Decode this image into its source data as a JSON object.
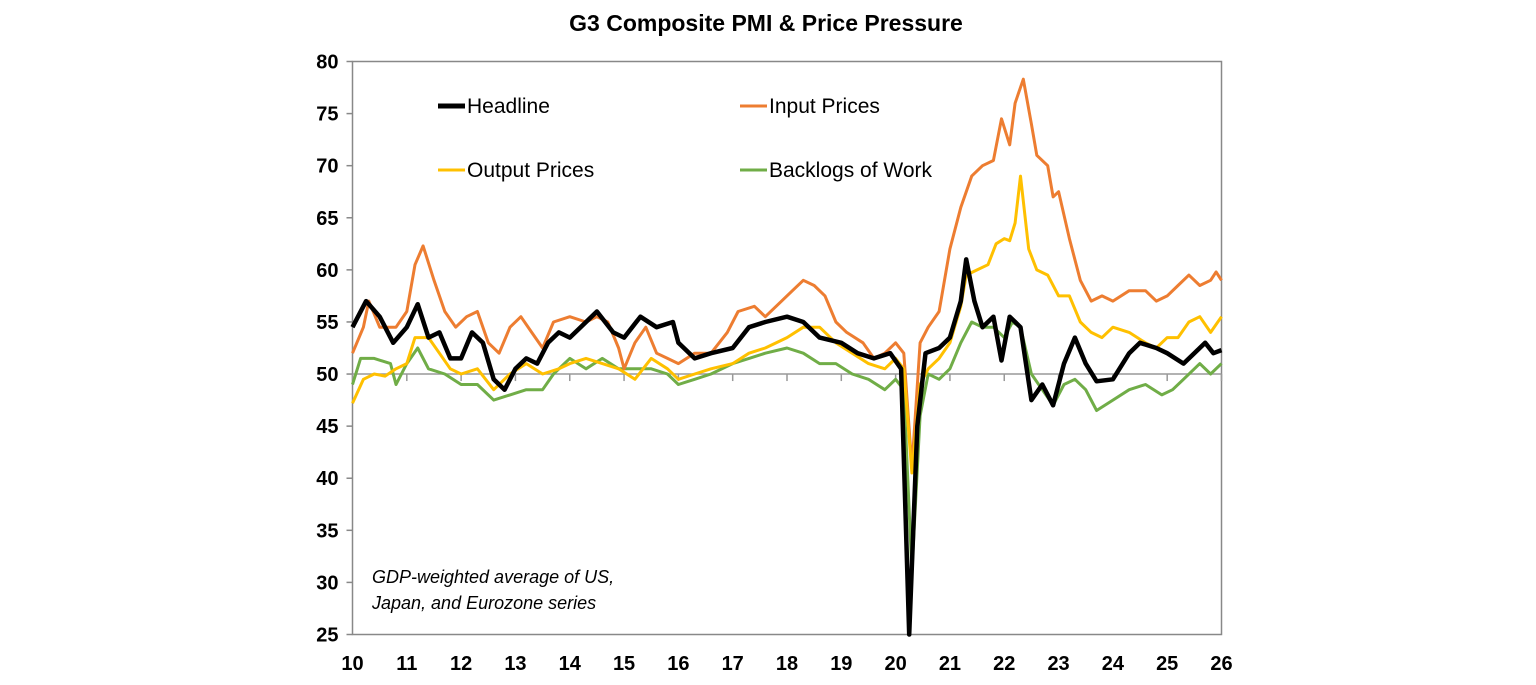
{
  "chart_data": {
    "type": "line",
    "title": "G3 Composite PMI & Price Pressure",
    "annotation": [
      "GDP-weighted average of US,",
      "Japan, and Eurozone series"
    ],
    "xlim": [
      10,
      26
    ],
    "ylim": [
      25,
      80
    ],
    "x_ticks": [
      "10",
      "11",
      "12",
      "13",
      "14",
      "15",
      "16",
      "17",
      "18",
      "19",
      "20",
      "21",
      "22",
      "23",
      "24",
      "25",
      "26"
    ],
    "y_ticks": [
      "80",
      "75",
      "70",
      "65",
      "60",
      "55",
      "50",
      "45",
      "40",
      "35",
      "30",
      "25"
    ],
    "x_axis_crosses_at": 50,
    "grid": false,
    "legend_placement": "top",
    "series": [
      {
        "name": "Headline",
        "color": "#000000",
        "x": [
          10.0,
          10.25,
          10.5,
          10.75,
          11.0,
          11.2,
          11.4,
          11.6,
          11.8,
          12.0,
          12.2,
          12.4,
          12.6,
          12.8,
          13.0,
          13.2,
          13.4,
          13.6,
          13.8,
          14.0,
          14.2,
          14.5,
          14.8,
          15.0,
          15.3,
          15.6,
          15.9,
          16.0,
          16.3,
          16.6,
          17.0,
          17.3,
          17.6,
          18.0,
          18.3,
          18.6,
          19.0,
          19.3,
          19.6,
          19.9,
          20.1,
          20.25,
          20.4,
          20.55,
          20.8,
          21.0,
          21.2,
          21.3,
          21.45,
          21.6,
          21.8,
          21.95,
          22.1,
          22.3,
          22.5,
          22.7,
          22.9,
          23.1,
          23.3,
          23.5,
          23.7,
          24.0,
          24.3,
          24.5,
          24.8,
          25.0,
          25.3,
          25.5,
          25.7,
          25.85,
          26.0
        ],
        "y": [
          54.5,
          57,
          55.5,
          53,
          54.5,
          56.7,
          53.5,
          54,
          51.5,
          51.5,
          54,
          53,
          49.5,
          48.5,
          50.5,
          51.5,
          51,
          53,
          54,
          53.5,
          54.5,
          56,
          54,
          53.5,
          55.5,
          54.5,
          55,
          53,
          51.5,
          52,
          52.5,
          54.5,
          55,
          55.5,
          55,
          53.5,
          53,
          52,
          51.5,
          52,
          50.5,
          25,
          45,
          52,
          52.5,
          53.5,
          57,
          61,
          57,
          54.5,
          55.5,
          51.3,
          55.5,
          54.5,
          47.5,
          49,
          47,
          51,
          53.5,
          51,
          49.3,
          49.5,
          52,
          53,
          52.5,
          52,
          51,
          52,
          53,
          52,
          52.3
        ]
      },
      {
        "name": "Input Prices",
        "color": "#ED7D31",
        "x": [
          10.0,
          10.2,
          10.3,
          10.5,
          10.8,
          11.0,
          11.15,
          11.3,
          11.5,
          11.7,
          11.9,
          12.1,
          12.3,
          12.5,
          12.7,
          12.9,
          13.1,
          13.3,
          13.5,
          13.7,
          14.0,
          14.3,
          14.5,
          14.7,
          14.9,
          15.0,
          15.2,
          15.4,
          15.6,
          15.8,
          16.0,
          16.3,
          16.6,
          16.9,
          17.1,
          17.4,
          17.6,
          17.9,
          18.1,
          18.3,
          18.5,
          18.7,
          18.9,
          19.1,
          19.4,
          19.6,
          19.8,
          20.0,
          20.15,
          20.3,
          20.45,
          20.6,
          20.8,
          21.0,
          21.2,
          21.4,
          21.6,
          21.8,
          21.95,
          22.1,
          22.2,
          22.35,
          22.5,
          22.6,
          22.8,
          22.9,
          23.0,
          23.2,
          23.4,
          23.6,
          23.8,
          24.0,
          24.3,
          24.6,
          24.8,
          25.0,
          25.2,
          25.4,
          25.6,
          25.8,
          25.9,
          26.0
        ],
        "y": [
          52,
          54.5,
          57,
          54.5,
          54.5,
          56,
          60.5,
          62.3,
          59,
          56,
          54.5,
          55.5,
          56,
          53,
          52,
          54.5,
          55.5,
          54,
          52.5,
          55,
          55.5,
          55,
          55.5,
          55,
          52.5,
          50.5,
          53,
          54.5,
          52,
          51.5,
          51,
          52,
          52,
          54,
          56,
          56.5,
          55.5,
          57,
          58,
          59,
          58.5,
          57.5,
          55,
          54,
          53,
          51.5,
          52,
          53,
          52,
          41,
          53,
          54.5,
          56,
          62,
          66,
          69,
          70,
          70.5,
          74.5,
          72,
          76,
          78.3,
          74,
          71,
          70,
          67,
          67.5,
          63,
          59,
          57,
          57.5,
          57,
          58,
          58,
          57,
          57.5,
          58.5,
          59.5,
          58.5,
          59,
          59.8,
          59
        ]
      },
      {
        "name": "Output Prices",
        "color": "#FFC000",
        "x": [
          10.0,
          10.2,
          10.4,
          10.6,
          10.8,
          11.0,
          11.15,
          11.4,
          11.6,
          11.8,
          12.0,
          12.3,
          12.6,
          12.9,
          13.2,
          13.5,
          13.8,
          14.0,
          14.3,
          14.6,
          14.9,
          15.2,
          15.5,
          15.8,
          16.0,
          16.3,
          16.6,
          17.0,
          17.3,
          17.6,
          18.0,
          18.3,
          18.6,
          18.9,
          19.2,
          19.5,
          19.8,
          20.0,
          20.15,
          20.3,
          20.45,
          20.6,
          20.8,
          21.0,
          21.2,
          21.3,
          21.5,
          21.7,
          21.85,
          22.0,
          22.1,
          22.2,
          22.3,
          22.45,
          22.6,
          22.8,
          23.0,
          23.2,
          23.4,
          23.6,
          23.8,
          24.0,
          24.3,
          24.6,
          24.8,
          25.0,
          25.2,
          25.4,
          25.6,
          25.8,
          26.0
        ],
        "y": [
          47.2,
          49.5,
          50,
          49.8,
          50.5,
          51,
          53.5,
          53.5,
          52,
          50.5,
          50,
          50.5,
          48.5,
          50,
          51,
          50,
          50.5,
          51,
          51.5,
          51,
          50.5,
          49.5,
          51.5,
          50.5,
          49.5,
          50,
          50.5,
          51,
          52,
          52.5,
          53.5,
          54.5,
          54.5,
          53,
          52,
          51,
          50.5,
          51.5,
          50.5,
          40.5,
          49,
          50.5,
          51.5,
          53,
          56.5,
          59.5,
          60,
          60.5,
          62.5,
          63,
          62.8,
          64.5,
          69,
          62,
          60,
          59.5,
          57.5,
          57.5,
          55,
          54,
          53.5,
          54.5,
          54,
          53,
          52.5,
          53.5,
          53.5,
          55,
          55.5,
          54,
          55.5
        ]
      },
      {
        "name": "Backlogs of Work",
        "color": "#70AD47",
        "x": [
          10.0,
          10.15,
          10.4,
          10.7,
          10.8,
          11.0,
          11.2,
          11.4,
          11.7,
          12.0,
          12.3,
          12.6,
          12.9,
          13.2,
          13.5,
          13.7,
          14.0,
          14.3,
          14.6,
          14.9,
          15.2,
          15.5,
          15.8,
          16.0,
          16.3,
          16.6,
          17.0,
          17.3,
          17.6,
          18.0,
          18.3,
          18.6,
          18.9,
          19.2,
          19.5,
          19.8,
          20.0,
          20.15,
          20.3,
          20.45,
          20.6,
          20.8,
          21.0,
          21.2,
          21.4,
          21.6,
          21.8,
          22.0,
          22.15,
          22.3,
          22.5,
          22.7,
          22.9,
          23.1,
          23.3,
          23.5,
          23.7,
          24.0,
          24.3,
          24.6,
          24.9,
          25.1,
          25.3,
          25.6,
          25.8,
          26.0
        ],
        "y": [
          49,
          51.5,
          51.5,
          51,
          49,
          51,
          52.5,
          50.5,
          50,
          49,
          49,
          47.5,
          48,
          48.5,
          48.5,
          50,
          51.5,
          50.5,
          51.5,
          50.5,
          50.5,
          50.5,
          50,
          49,
          49.5,
          50,
          51,
          51.5,
          52,
          52.5,
          52,
          51,
          51,
          50,
          49.5,
          48.5,
          49.5,
          48.5,
          31,
          46,
          50,
          49.5,
          50.5,
          53,
          55,
          54.5,
          54.5,
          53.5,
          55,
          54.5,
          50,
          48.5,
          47,
          49,
          49.5,
          48.5,
          46.5,
          47.5,
          48.5,
          49,
          48,
          48.5,
          49.5,
          51,
          50,
          51
        ]
      }
    ]
  }
}
